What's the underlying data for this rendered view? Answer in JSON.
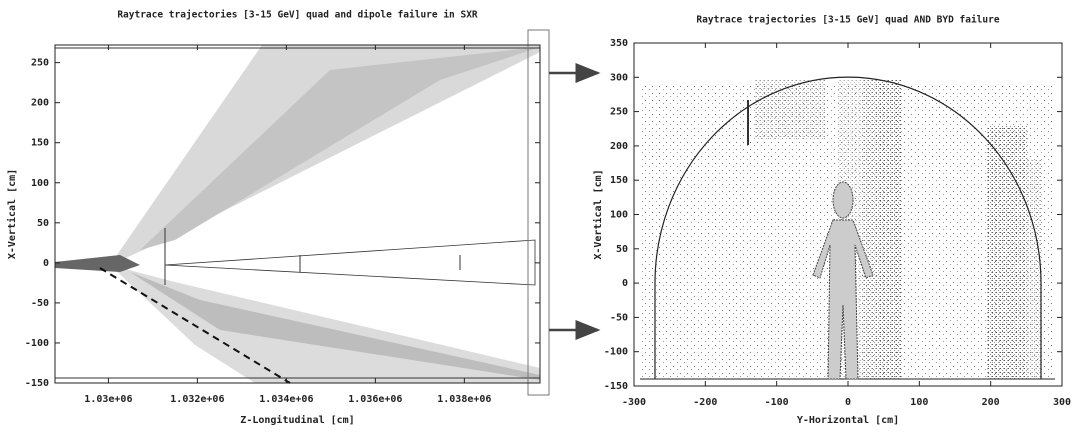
{
  "chart_data": [
    {
      "type": "density",
      "title": "Raytrace trajectories [3-15 GeV] quad and dipole failure in SXR",
      "x_label": "Z-Longitudinal [cm]",
      "y_label": "X-Vertical [cm]",
      "xlim": [
        1028800,
        1039700
      ],
      "xticks": [
        {
          "value": 1030000,
          "label": "1.03e+06"
        },
        {
          "value": 1032000,
          "label": "1.032e+06"
        },
        {
          "value": 1034000,
          "label": "1.034e+06"
        },
        {
          "value": 1036000,
          "label": "1.036e+06"
        },
        {
          "value": 1038000,
          "label": "1.038e+06"
        }
      ],
      "ylim": [
        -150,
        272
      ],
      "yticks": [
        -150,
        -100,
        -50,
        0,
        50,
        100,
        150,
        200,
        250
      ]
    },
    {
      "type": "density",
      "title": "Raytrace trajectories [3-15 GeV] quad AND BYD failure",
      "x_label": "Y-Horizontal [cm]",
      "y_label": "X-Vertical [cm]",
      "xlim": [
        -300,
        300
      ],
      "xticks": [
        -300,
        -200,
        -100,
        0,
        100,
        200,
        300
      ],
      "ylim": [
        -150,
        350
      ],
      "yticks": [
        -150,
        -100,
        -50,
        0,
        50,
        100,
        150,
        200,
        250,
        300,
        350
      ]
    }
  ]
}
